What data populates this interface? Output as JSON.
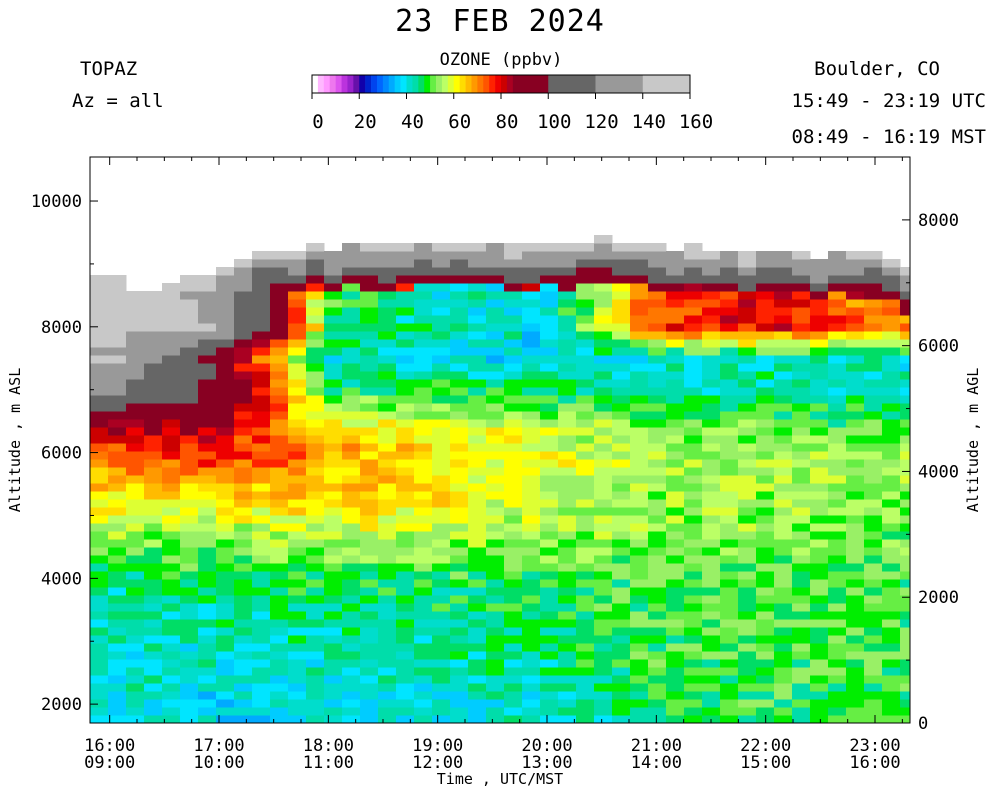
{
  "header": {
    "title": "23 FEB 2024",
    "instrument": "TOPAZ",
    "azimuth": "Az = all",
    "location": "Boulder, CO",
    "utc_range": "15:49 - 23:19 UTC",
    "mst_range": "08:49 - 16:19 MST"
  },
  "colorbar": {
    "title": "OZONE (ppbv)",
    "tick_labels": [
      "0",
      "20",
      "40",
      "60",
      "80",
      "100",
      "120",
      "140",
      "160"
    ],
    "bins": [
      {
        "from": 0,
        "to": 2.5,
        "color": "#ffffff"
      },
      {
        "from": 2.5,
        "to": 5,
        "color": "#ffb8ff"
      },
      {
        "from": 5,
        "to": 7.5,
        "color": "#ff99ff"
      },
      {
        "from": 7.5,
        "to": 10,
        "color": "#ee77ee"
      },
      {
        "from": 10,
        "to": 12.5,
        "color": "#dd55ee"
      },
      {
        "from": 12.5,
        "to": 15,
        "color": "#bb33dd"
      },
      {
        "from": 15,
        "to": 17.5,
        "color": "#9922cc"
      },
      {
        "from": 17.5,
        "to": 20,
        "color": "#6611aa"
      },
      {
        "from": 20,
        "to": 22.5,
        "color": "#1100aa"
      },
      {
        "from": 22.5,
        "to": 25,
        "color": "#0022cc"
      },
      {
        "from": 25,
        "to": 27.5,
        "color": "#0044ee"
      },
      {
        "from": 27.5,
        "to": 30,
        "color": "#0066ff"
      },
      {
        "from": 30,
        "to": 32.5,
        "color": "#0088ff"
      },
      {
        "from": 32.5,
        "to": 35,
        "color": "#00aaff"
      },
      {
        "from": 35,
        "to": 37.5,
        "color": "#00ccff"
      },
      {
        "from": 37.5,
        "to": 40,
        "color": "#00e5ff"
      },
      {
        "from": 40,
        "to": 42.5,
        "color": "#00ddcc"
      },
      {
        "from": 42.5,
        "to": 45,
        "color": "#00ddaa"
      },
      {
        "from": 45,
        "to": 47.5,
        "color": "#00dd66"
      },
      {
        "from": 47.5,
        "to": 50,
        "color": "#00ee00"
      },
      {
        "from": 50,
        "to": 52.5,
        "color": "#66ee44"
      },
      {
        "from": 52.5,
        "to": 55,
        "color": "#99f066"
      },
      {
        "from": 55,
        "to": 57.5,
        "color": "#bbff66"
      },
      {
        "from": 57.5,
        "to": 60,
        "color": "#ddff33"
      },
      {
        "from": 60,
        "to": 62.5,
        "color": "#ffff00"
      },
      {
        "from": 62.5,
        "to": 65,
        "color": "#ffdd00"
      },
      {
        "from": 65,
        "to": 67.5,
        "color": "#ffbb00"
      },
      {
        "from": 67.5,
        "to": 70,
        "color": "#ff9900"
      },
      {
        "from": 70,
        "to": 72.5,
        "color": "#ff7700"
      },
      {
        "from": 72.5,
        "to": 75,
        "color": "#ff5500"
      },
      {
        "from": 75,
        "to": 77.5,
        "color": "#ff2200"
      },
      {
        "from": 77.5,
        "to": 80,
        "color": "#ee0000"
      },
      {
        "from": 80,
        "to": 82.5,
        "color": "#cc0000"
      },
      {
        "from": 82.5,
        "to": 85,
        "color": "#aa0022"
      },
      {
        "from": 85,
        "to": 100,
        "color": "#880022"
      },
      {
        "from": 100,
        "to": 120,
        "color": "#666666"
      },
      {
        "from": 120,
        "to": 140,
        "color": "#999999"
      },
      {
        "from": 140,
        "to": 160,
        "color": "#c8c8c8"
      }
    ]
  },
  "chart_data": {
    "type": "heatmap",
    "title": "23 FEB 2024",
    "variable": "OZONE (ppbv)",
    "xlabel": "Time , UTC/MST",
    "ylabel_left": "Altitude , m ASL",
    "ylabel_right": "Altitude , m AGL",
    "x_range_utc_hours": [
      15.82,
      23.32
    ],
    "y_range_asl_m": [
      1700,
      10700
    ],
    "agl_offset_m": 1700,
    "x_ticks": [
      {
        "utc": "16:00",
        "mst": "09:00"
      },
      {
        "utc": "17:00",
        "mst": "10:00"
      },
      {
        "utc": "18:00",
        "mst": "11:00"
      },
      {
        "utc": "19:00",
        "mst": "12:00"
      },
      {
        "utc": "20:00",
        "mst": "13:00"
      },
      {
        "utc": "21:00",
        "mst": "14:00"
      },
      {
        "utc": "22:00",
        "mst": "15:00"
      },
      {
        "utc": "23:00",
        "mst": "16:00"
      }
    ],
    "y_ticks_left": [
      "2000",
      "4000",
      "6000",
      "8000",
      "10000"
    ],
    "y_ticks_right": [
      "0",
      "2000",
      "4000",
      "6000",
      "8000"
    ],
    "grid": false,
    "altitude_bins_m": [
      2000,
      3000,
      4000,
      5000,
      6000,
      6500,
      7000,
      7500,
      8000
    ],
    "profiles": [
      {
        "utc": "16:00",
        "ozone_ppbv": [
          40,
          42,
          45,
          58,
          72,
          85,
          120,
          140,
          150
        ]
      },
      {
        "utc": "17:00",
        "ozone_ppbv": [
          38,
          42,
          46,
          58,
          78,
          85,
          100,
          90,
          140
        ]
      },
      {
        "utc": "18:00",
        "ozone_ppbv": [
          40,
          44,
          47,
          62,
          68,
          60,
          48,
          40,
          50
        ]
      },
      {
        "utc": "19:00",
        "ozone_ppbv": [
          40,
          44,
          47,
          60,
          64,
          58,
          48,
          40,
          42
        ]
      },
      {
        "utc": "20:00",
        "ozone_ppbv": [
          42,
          46,
          48,
          56,
          60,
          55,
          45,
          38,
          40
        ]
      },
      {
        "utc": "21:00",
        "ozone_ppbv": [
          47,
          49,
          50,
          54,
          56,
          52,
          44,
          40,
          75
        ]
      },
      {
        "utc": "22:00",
        "ozone_ppbv": [
          48,
          50,
          50,
          54,
          55,
          50,
          44,
          42,
          80
        ]
      },
      {
        "utc": "23:00",
        "ozone_ppbv": [
          48,
          50,
          49,
          53,
          54,
          48,
          43,
          42,
          70
        ]
      }
    ],
    "profile_top_asl_m": [
      {
        "utc": "15:49",
        "top_m": 8800
      },
      {
        "utc": "16:30",
        "top_m": 8600
      },
      {
        "utc": "17:00",
        "top_m": 9000
      },
      {
        "utc": "17:30",
        "top_m": 9250
      },
      {
        "utc": "18:00",
        "top_m": 9300
      },
      {
        "utc": "19:00",
        "top_m": 9350
      },
      {
        "utc": "20:00",
        "top_m": 9300
      },
      {
        "utc": "20:30",
        "top_m": 9400
      },
      {
        "utc": "21:00",
        "top_m": 9300
      },
      {
        "utc": "22:00",
        "top_m": 9200
      },
      {
        "utc": "23:00",
        "top_m": 9150
      },
      {
        "utc": "23:19",
        "top_m": 9000
      }
    ]
  }
}
